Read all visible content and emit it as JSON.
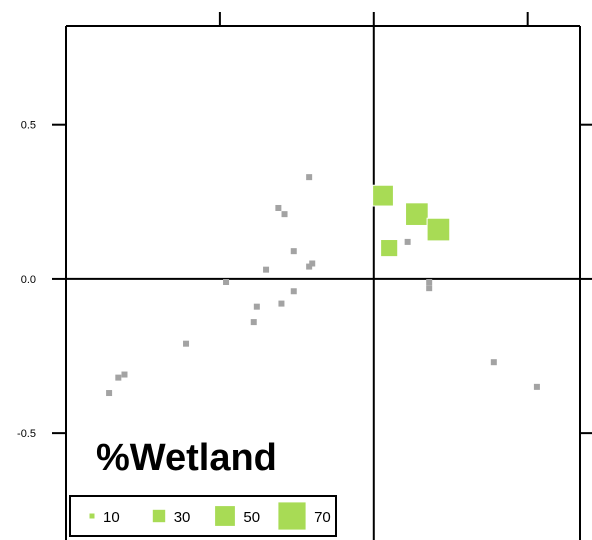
{
  "chart_data": {
    "type": "scatter",
    "title": "%Wetland",
    "xlabel": "",
    "ylabel": "",
    "xlim": [
      -1.0,
      0.67
    ],
    "ylim": [
      -0.84,
      0.82
    ],
    "yticks": [
      {
        "value": 0.5,
        "label": "0.5"
      },
      {
        "value": 0.0,
        "label": "0.0"
      },
      {
        "value": -0.5,
        "label": "-0.5"
      }
    ],
    "xticks": [
      -0.5,
      0.0,
      0.5
    ],
    "reference_lines": {
      "x": 0.0,
      "y": 0.0
    },
    "colors": {
      "gray": "#a3a3a3",
      "green": "#a8db55",
      "axis": "#000000"
    },
    "points": [
      {
        "x": -0.21,
        "y": 0.33,
        "size": 10,
        "color": "gray"
      },
      {
        "x": -0.2,
        "y": 0.05,
        "size": 10,
        "color": "gray"
      },
      {
        "x": -0.21,
        "y": 0.04,
        "size": 10,
        "color": "gray"
      },
      {
        "x": -0.31,
        "y": 0.23,
        "size": 10,
        "color": "gray"
      },
      {
        "x": -0.29,
        "y": 0.21,
        "size": 10,
        "color": "gray"
      },
      {
        "x": -0.26,
        "y": 0.09,
        "size": 10,
        "color": "gray"
      },
      {
        "x": -0.26,
        "y": -0.04,
        "size": 10,
        "color": "gray"
      },
      {
        "x": -0.3,
        "y": -0.08,
        "size": 10,
        "color": "gray"
      },
      {
        "x": -0.35,
        "y": 0.03,
        "size": 10,
        "color": "gray"
      },
      {
        "x": -0.48,
        "y": -0.01,
        "size": 10,
        "color": "gray"
      },
      {
        "x": -0.38,
        "y": -0.09,
        "size": 10,
        "color": "gray"
      },
      {
        "x": -0.39,
        "y": -0.14,
        "size": 10,
        "color": "gray"
      },
      {
        "x": -0.61,
        "y": -0.21,
        "size": 10,
        "color": "gray"
      },
      {
        "x": -0.81,
        "y": -0.31,
        "size": 10,
        "color": "gray"
      },
      {
        "x": -0.83,
        "y": -0.32,
        "size": 10,
        "color": "gray"
      },
      {
        "x": -0.86,
        "y": -0.37,
        "size": 10,
        "color": "gray"
      },
      {
        "x": 0.11,
        "y": 0.12,
        "size": 10,
        "color": "gray"
      },
      {
        "x": 0.18,
        "y": -0.01,
        "size": 10,
        "color": "gray"
      },
      {
        "x": 0.18,
        "y": -0.03,
        "size": 10,
        "color": "gray"
      },
      {
        "x": 0.39,
        "y": -0.27,
        "size": 10,
        "color": "gray"
      },
      {
        "x": 0.53,
        "y": -0.35,
        "size": 10,
        "color": "gray"
      },
      {
        "x": 0.03,
        "y": 0.27,
        "size": 50,
        "color": "green"
      },
      {
        "x": 0.14,
        "y": 0.21,
        "size": 55,
        "color": "green"
      },
      {
        "x": 0.21,
        "y": 0.16,
        "size": 55,
        "color": "green"
      },
      {
        "x": 0.05,
        "y": 0.1,
        "size": 40,
        "color": "green"
      }
    ],
    "legend": {
      "title": "%Wetland",
      "position": "bottom-left",
      "entries": [
        {
          "label": "10",
          "size": 10
        },
        {
          "label": "30",
          "size": 30
        },
        {
          "label": "50",
          "size": 50
        },
        {
          "label": "70",
          "size": 70
        }
      ]
    }
  }
}
